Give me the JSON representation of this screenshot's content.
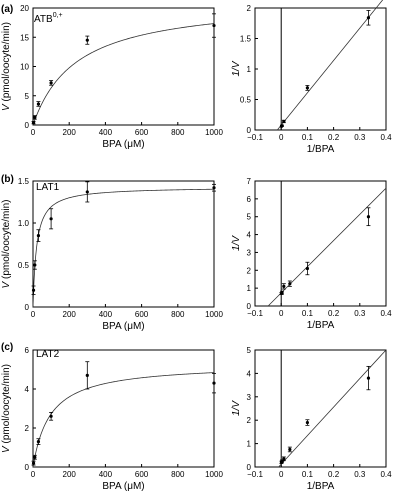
{
  "panels": [
    {
      "letter": "(a)",
      "name": "ATB",
      "name_sup": "0,+"
    },
    {
      "letter": "(b)",
      "name": "LAT1",
      "name_sup": ""
    },
    {
      "letter": "(c)",
      "name": "LAT2",
      "name_sup": ""
    }
  ],
  "chart_data": [
    {
      "type": "scatter",
      "panel": "(a)",
      "annotation": "ATB0,+",
      "xlabel": "BPA (μM)",
      "ylabel": "V (pmol/oocyte/min)",
      "xlim": [
        0,
        1000
      ],
      "ylim": [
        0,
        20
      ],
      "xticks": [
        "0",
        "200",
        "400",
        "600",
        "800",
        "1000"
      ],
      "yticks": [
        "0",
        "5",
        "10",
        "15",
        "20"
      ],
      "grid": false,
      "points": [
        {
          "x": 3,
          "y": 0.4,
          "err": 0.2
        },
        {
          "x": 10,
          "y": 1.3,
          "err": 0.3
        },
        {
          "x": 30,
          "y": 3.6,
          "err": 0.4
        },
        {
          "x": 100,
          "y": 7.2,
          "err": 0.4
        },
        {
          "x": 300,
          "y": 14.5,
          "err": 0.7
        },
        {
          "x": 1000,
          "y": 17.0,
          "err": 2.0
        }
      ],
      "fit": {
        "model": "michaelis-menten",
        "vmax": 21.5,
        "km": 240
      }
    },
    {
      "type": "scatter",
      "panel": "(a)",
      "xlabel": "1/BPA",
      "ylabel": "1/V",
      "xlim": [
        -0.1,
        0.4
      ],
      "ylim": [
        0,
        2
      ],
      "xticks": [
        "−0.1",
        "0",
        "0.1",
        "0.2",
        "0.3",
        "0.4"
      ],
      "yticks": [
        "0",
        "0.5",
        "1",
        "1.5",
        "2"
      ],
      "grid": false,
      "points": [
        {
          "x": 0.001,
          "y": 0.06,
          "err": 0.0
        },
        {
          "x": 0.003,
          "y": 0.07,
          "err": 0.01
        },
        {
          "x": 0.01,
          "y": 0.14,
          "err": 0.02
        },
        {
          "x": 0.1,
          "y": 0.69,
          "err": 0.04
        },
        {
          "x": 0.333,
          "y": 1.84,
          "err": 0.12
        }
      ],
      "fit": {
        "model": "linear",
        "x": [
          -0.015,
          0.4
        ],
        "y": [
          0.0,
          2.2
        ]
      }
    },
    {
      "type": "scatter",
      "panel": "(b)",
      "annotation": "LAT1",
      "xlabel": "BPA (μM)",
      "ylabel": "V (pmol/oocyte/min)",
      "xlim": [
        0,
        1000
      ],
      "ylim": [
        0,
        1.5
      ],
      "xticks": [
        "0",
        "200",
        "400",
        "600",
        "800",
        "1000"
      ],
      "yticks": [
        "0",
        "0.5",
        "1.0",
        "1.5"
      ],
      "grid": false,
      "points": [
        {
          "x": 3,
          "y": 0.2,
          "err": 0.05
        },
        {
          "x": 10,
          "y": 0.5,
          "err": 0.05
        },
        {
          "x": 30,
          "y": 0.85,
          "err": 0.07
        },
        {
          "x": 100,
          "y": 1.05,
          "err": 0.12
        },
        {
          "x": 300,
          "y": 1.37,
          "err": 0.12
        },
        {
          "x": 1000,
          "y": 1.42,
          "err": 0.04
        }
      ],
      "fit": {
        "model": "michaelis-menten",
        "vmax": 1.43,
        "km": 20
      }
    },
    {
      "type": "scatter",
      "panel": "(b)",
      "xlabel": "1/BPA",
      "ylabel": "1/V",
      "xlim": [
        -0.1,
        0.4
      ],
      "ylim": [
        0,
        7
      ],
      "xticks": [
        "−0.1",
        "0",
        "0.1",
        "0.2",
        "0.3",
        "0.4"
      ],
      "yticks": [
        "0",
        "1",
        "2",
        "3",
        "4",
        "5",
        "6",
        "7"
      ],
      "grid": false,
      "points": [
        {
          "x": 0.001,
          "y": 0.7,
          "err": 0.05
        },
        {
          "x": 0.003,
          "y": 0.75,
          "err": 0.08
        },
        {
          "x": 0.01,
          "y": 1.1,
          "err": 0.15
        },
        {
          "x": 0.033,
          "y": 1.25,
          "err": 0.15
        },
        {
          "x": 0.1,
          "y": 2.1,
          "err": 0.35
        },
        {
          "x": 0.333,
          "y": 5.0,
          "err": 0.5
        }
      ],
      "fit": {
        "model": "linear",
        "x": [
          -0.05,
          0.4
        ],
        "y": [
          0.0,
          6.6
        ]
      }
    },
    {
      "type": "scatter",
      "panel": "(c)",
      "annotation": "LAT2",
      "xlabel": "BPA (μM)",
      "ylabel": "V (pmol/oocyte/min)",
      "xlim": [
        0,
        1000
      ],
      "ylim": [
        0,
        6
      ],
      "xticks": [
        "0",
        "200",
        "400",
        "600",
        "800",
        "1000"
      ],
      "yticks": [
        "0",
        "2",
        "4",
        "6"
      ],
      "grid": false,
      "points": [
        {
          "x": 3,
          "y": 0.2,
          "err": 0.1
        },
        {
          "x": 10,
          "y": 0.5,
          "err": 0.1
        },
        {
          "x": 30,
          "y": 1.3,
          "err": 0.15
        },
        {
          "x": 100,
          "y": 2.6,
          "err": 0.2
        },
        {
          "x": 300,
          "y": 4.7,
          "err": 0.7
        },
        {
          "x": 1000,
          "y": 4.3,
          "err": 0.5
        }
      ],
      "fit": {
        "model": "michaelis-menten",
        "vmax": 5.3,
        "km": 95
      }
    },
    {
      "type": "scatter",
      "panel": "(c)",
      "xlabel": "1/BPA",
      "ylabel": "1/V",
      "xlim": [
        -0.1,
        0.4
      ],
      "ylim": [
        0,
        5
      ],
      "xticks": [
        "−0.1",
        "0",
        "0.1",
        "0.2",
        "0.3",
        "0.4"
      ],
      "yticks": [
        "0",
        "1",
        "2",
        "3",
        "4",
        "5"
      ],
      "grid": false,
      "points": [
        {
          "x": 0.001,
          "y": 0.2,
          "err": 0.05
        },
        {
          "x": 0.003,
          "y": 0.25,
          "err": 0.05
        },
        {
          "x": 0.01,
          "y": 0.35,
          "err": 0.08
        },
        {
          "x": 0.033,
          "y": 0.75,
          "err": 0.1
        },
        {
          "x": 0.1,
          "y": 1.9,
          "err": 0.12
        },
        {
          "x": 0.333,
          "y": 3.8,
          "err": 0.5
        }
      ],
      "fit": {
        "model": "linear",
        "x": [
          -0.01,
          0.4
        ],
        "y": [
          0.0,
          5.0
        ]
      }
    }
  ]
}
